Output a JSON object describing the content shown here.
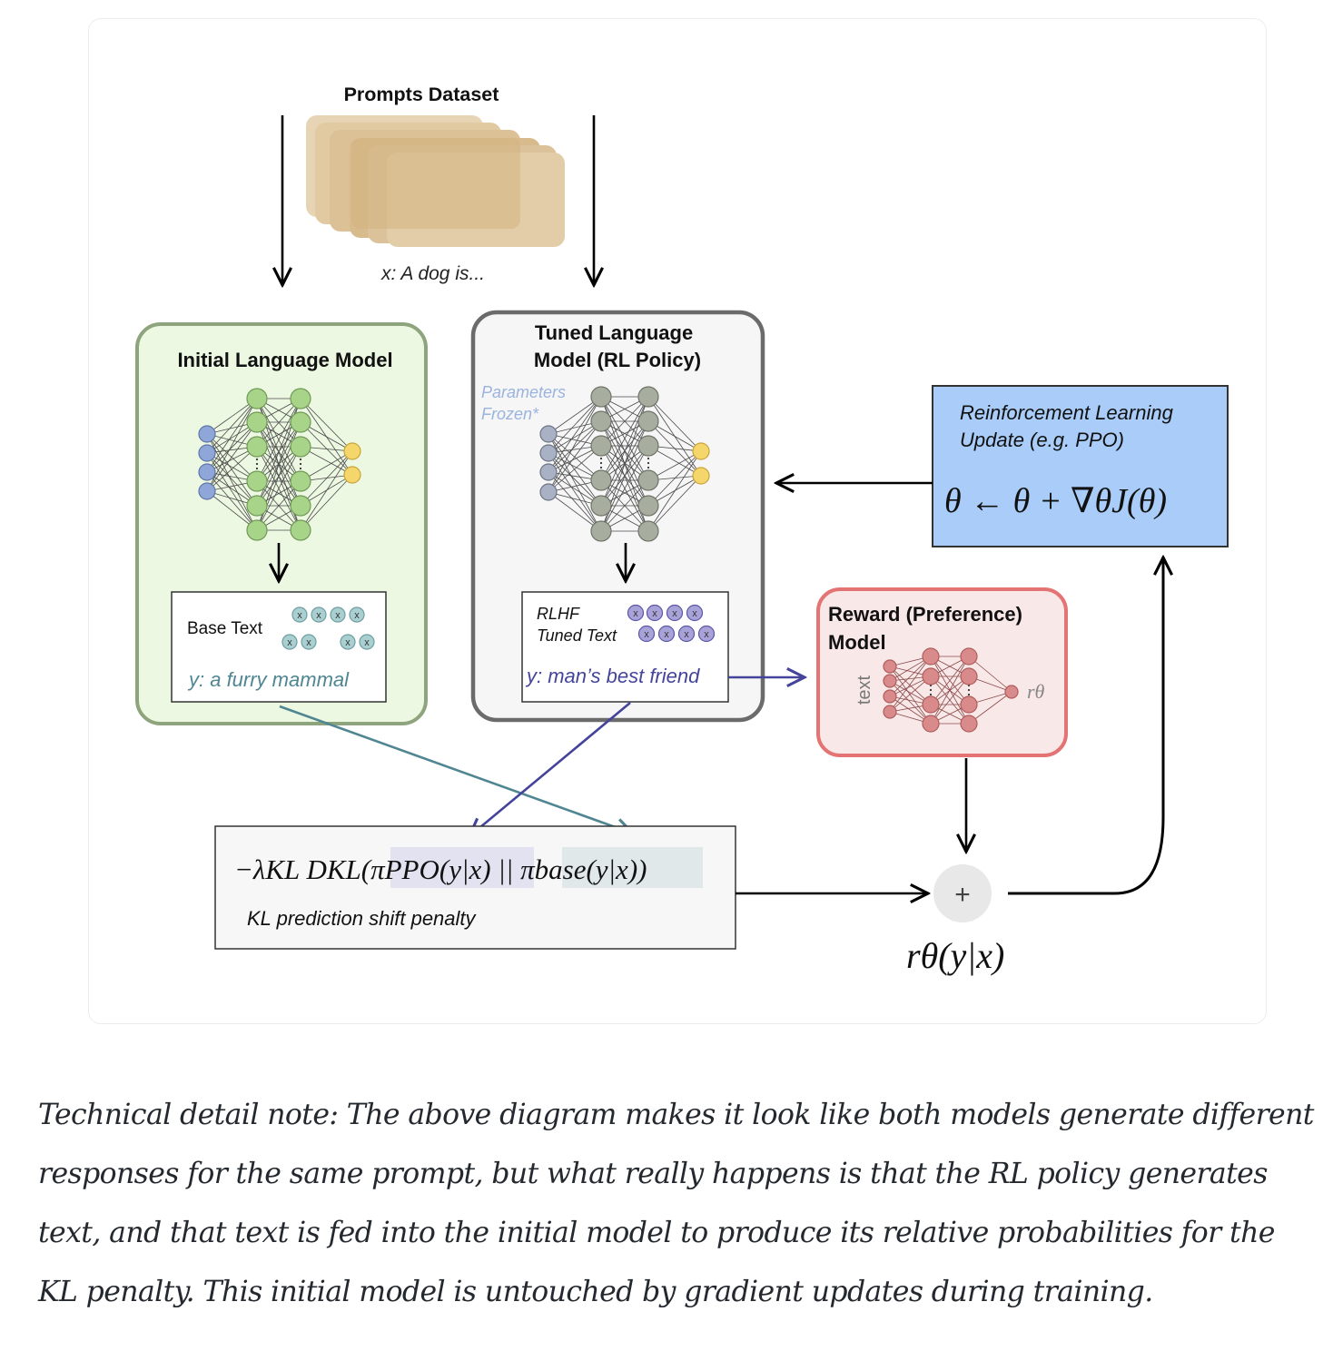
{
  "diagram": {
    "dataset": {
      "title": "Prompts Dataset",
      "prompt": "x: A dog is..."
    },
    "initial_model": {
      "title": "Initial Language Model",
      "output_label": "Base Text",
      "output_text": "y: a furry mammal"
    },
    "tuned_model": {
      "title_line1": "Tuned Language",
      "title_line2": "Model (RL Policy)",
      "frozen_line1": "Parameters",
      "frozen_line2": "Frozen*",
      "output_label_line1": "RLHF",
      "output_label_line2": "Tuned Text",
      "output_text": "y: man’s best friend"
    },
    "rl_update": {
      "title_line1": "Reinforcement Learning",
      "title_line2": "Update (e.g. PPO)",
      "formula": "θ ← θ + ∇θJ(θ)"
    },
    "reward_model": {
      "title_line1": "Reward (Preference)",
      "title_line2": "Model",
      "input_label": "text",
      "output_symbol": "rθ"
    },
    "kl_penalty": {
      "formula": "−λKL DKL(πPPO(y|x) || πbase(y|x))",
      "caption": "KL prediction shift penalty"
    },
    "sum_node": {
      "symbol": "+",
      "result": "rθ(y|x)"
    },
    "token_marker": "x",
    "colors": {
      "initial_green": "#edf8e2",
      "initial_border": "#8ea47c",
      "tuned_border": "#6b6b6b",
      "rl_blue": "#a9cdf8",
      "reward_pink": "#f9e8e8",
      "reward_border": "#e47373",
      "teal_arrow": "#4f8692",
      "purple_arrow": "#44449a"
    }
  },
  "note": "Technical detail note: The above diagram makes it look like both models generate different responses for the same prompt, but what really happens is that the RL policy generates text, and that text is fed into the initial model to produce its relative probabilities for the KL penalty. This initial model is untouched by gradient updates during training."
}
